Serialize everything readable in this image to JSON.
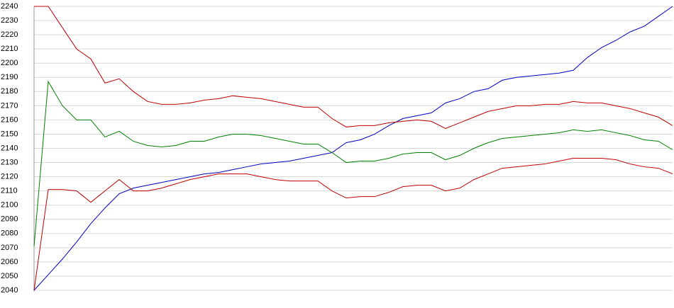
{
  "chart_data": {
    "type": "line",
    "categories": [
      null,
      null,
      null,
      null,
      null,
      null,
      null,
      null,
      null,
      null,
      null,
      null,
      null,
      null,
      null,
      null,
      null,
      null,
      null,
      null,
      null,
      null,
      null,
      null,
      null,
      null,
      null,
      null,
      null,
      null,
      null,
      null,
      null,
      null,
      null,
      null,
      null,
      null,
      null,
      null,
      null,
      null,
      null,
      null,
      null,
      null
    ],
    "series": [
      {
        "color": "#0000c0",
        "values": [
          2040,
          2051,
          2062,
          2074,
          2087,
          2098,
          2108,
          2112,
          2114,
          2116,
          2118,
          2120,
          2122,
          2123,
          2125,
          2127,
          2129,
          2130,
          2131,
          2133,
          2135,
          2137,
          2144,
          2146,
          2150,
          2156,
          2161,
          2163,
          2165,
          2172,
          2175,
          2180,
          2182,
          2188,
          2190,
          2191,
          2192,
          2193,
          2195,
          2204,
          2211,
          2216,
          2222,
          2226,
          2233,
          2240
        ]
      },
      {
        "color": "#c00000",
        "values": [
          2240,
          2240,
          2225,
          2210,
          2203,
          2186,
          2189,
          2180,
          2173,
          2171,
          2171,
          2172,
          2174,
          2175,
          2177,
          2176,
          2175,
          2173,
          2171,
          2169,
          2169,
          2161,
          2155,
          2156,
          2156,
          2158,
          2159,
          2160,
          2159,
          2154,
          2158,
          2162,
          2166,
          2168,
          2170,
          2170,
          2171,
          2171,
          2173,
          2172,
          2172,
          2170,
          2168,
          2165,
          2162,
          2156
        ]
      },
      {
        "color": "#008000",
        "values": [
          2071,
          2187,
          2170,
          2160,
          2160,
          2148,
          2152,
          2145,
          2142,
          2141,
          2142,
          2145,
          2145,
          2148,
          2150,
          2150,
          2149,
          2147,
          2145,
          2143,
          2143,
          2137,
          2130,
          2131,
          2131,
          2133,
          2136,
          2137,
          2137,
          2132,
          2135,
          2140,
          2144,
          2147,
          2148,
          2149,
          2150,
          2151,
          2153,
          2152,
          2153,
          2151,
          2149,
          2146,
          2145,
          2139
        ]
      },
      {
        "color": "#c00000",
        "values": [
          2040,
          2111,
          2111,
          2110,
          2102,
          2110,
          2118,
          2110,
          2110,
          2112,
          2115,
          2118,
          2120,
          2122,
          2122,
          2122,
          2120,
          2118,
          2117,
          2117,
          2117,
          2110,
          2105,
          2106,
          2106,
          2109,
          2113,
          2114,
          2114,
          2110,
          2112,
          2118,
          2122,
          2126,
          2127,
          2128,
          2129,
          2131,
          2133,
          2133,
          2133,
          2132,
          2129,
          2127,
          2126,
          2122
        ]
      }
    ],
    "ylim": [
      2040,
      2240
    ],
    "yticks": [
      2040,
      2050,
      2060,
      2070,
      2080,
      2090,
      2100,
      2110,
      2120,
      2130,
      2140,
      2150,
      2160,
      2170,
      2180,
      2190,
      2200,
      2210,
      2220,
      2230,
      2240
    ],
    "grid": true
  }
}
